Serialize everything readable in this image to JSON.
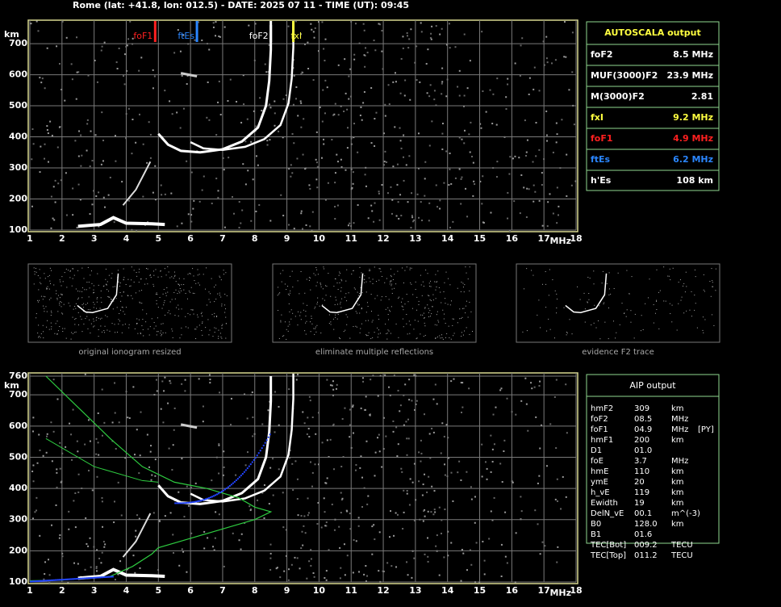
{
  "header": "Rome (lat: +41.8, lon: 012.5) - DATE: 2025 07 11 - TIME (UT): 09:45",
  "top_ionogram": {
    "y_unit": "km",
    "x_unit": "MHz",
    "xlim": [
      1,
      18
    ],
    "ylim": [
      100,
      760
    ],
    "xticks": [
      1,
      2,
      3,
      4,
      5,
      6,
      7,
      8,
      9,
      10,
      11,
      12,
      13,
      14,
      15,
      16,
      17,
      18
    ],
    "yticks": [
      100,
      200,
      300,
      400,
      500,
      600,
      700
    ],
    "markers": [
      {
        "label": "foF1",
        "value": 4.9,
        "color": "#ff2020"
      },
      {
        "label": "ftEs",
        "value": 6.2,
        "color": "#2a86ff"
      },
      {
        "label": "foF2",
        "value": 8.5,
        "color": "#ffffff"
      },
      {
        "label": "fxI",
        "value": 9.2,
        "color": "#ffff40"
      }
    ]
  },
  "autoscala": {
    "title": "AUTOSCALA output",
    "rows": [
      {
        "name": "foF2",
        "value": "8.5 MHz",
        "color": "#ffffff"
      },
      {
        "name": "MUF(3000)F2",
        "value": "23.9 MHz",
        "color": "#ffffff"
      },
      {
        "name": "M(3000)F2",
        "value": "2.81",
        "color": "#ffffff"
      },
      {
        "name": "fxI",
        "value": "9.2 MHz",
        "color": "#ffff40"
      },
      {
        "name": "foF1",
        "value": "4.9 MHz",
        "color": "#ff2020"
      },
      {
        "name": "ftEs",
        "value": "6.2 MHz",
        "color": "#2a86ff"
      },
      {
        "name": "h'Es",
        "value": "108    km",
        "color": "#ffffff"
      }
    ]
  },
  "thumbnails": [
    "original ionogram resized",
    "eliminate multiple reflections",
    "evidence F2 trace"
  ],
  "bottom_ionogram": {
    "y_unit": "km",
    "x_unit": "MHz",
    "xlim": [
      1,
      18
    ],
    "ylim": [
      100,
      760
    ],
    "xticks": [
      1,
      2,
      3,
      4,
      5,
      6,
      7,
      8,
      9,
      10,
      11,
      12,
      13,
      14,
      15,
      16,
      17,
      18
    ],
    "yticks": [
      100,
      200,
      300,
      400,
      500,
      600,
      700,
      760
    ]
  },
  "aip": {
    "title": "AIP output",
    "rows": [
      [
        "hmF2",
        "309",
        "km"
      ],
      [
        "foF2",
        "08.5",
        "MHz"
      ],
      [
        "foF1",
        "04.9",
        "MHz",
        "[PY]"
      ],
      [
        "hmF1",
        "200",
        "km"
      ],
      [
        "D1",
        "01.0"
      ],
      [
        "foE",
        "3.7",
        "MHz"
      ],
      [
        "hmE",
        "110",
        "km"
      ],
      [
        "ymE",
        "20",
        "km"
      ],
      [
        "h_vE",
        "119",
        "km"
      ],
      [
        "Ewidth",
        "19",
        "km"
      ],
      [
        "DelN_vE",
        "00.1",
        "m^(-3)"
      ],
      [
        "B0",
        "128.0",
        "km"
      ],
      [
        "B1",
        "01.6"
      ],
      [
        "TEC[Bot]",
        "009.2",
        "TECU"
      ],
      [
        "TEC[Top]",
        "011.2",
        "TECU"
      ]
    ]
  }
}
